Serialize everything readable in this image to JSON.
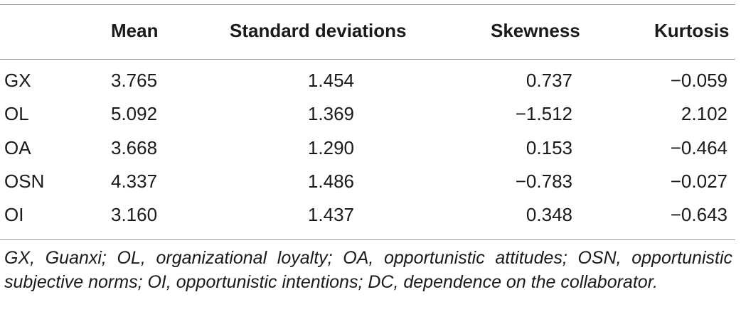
{
  "table": {
    "headers": {
      "label": "",
      "mean": "Mean",
      "sd": "Standard deviations",
      "skewness": "Skewness",
      "kurtosis": "Kurtosis"
    },
    "rows": [
      {
        "label": "GX",
        "mean": "3.765",
        "sd": "1.454",
        "skewness": "0.737",
        "kurtosis": "−0.059"
      },
      {
        "label": "OL",
        "mean": "5.092",
        "sd": "1.369",
        "skewness": "−1.512",
        "kurtosis": "2.102"
      },
      {
        "label": "OA",
        "mean": "3.668",
        "sd": "1.290",
        "skewness": "0.153",
        "kurtosis": "−0.464"
      },
      {
        "label": "OSN",
        "mean": "4.337",
        "sd": "1.486",
        "skewness": "−0.783",
        "kurtosis": "−0.027"
      },
      {
        "label": "OI",
        "mean": "3.160",
        "sd": "1.437",
        "skewness": "0.348",
        "kurtosis": "−0.643"
      }
    ]
  },
  "footnote": "GX, Guanxi; OL, organizational loyalty; OA, opportunistic attitudes; OSN, opportunistic subjective norms; OI, opportunistic intentions; DC, dependence on the collaborator."
}
